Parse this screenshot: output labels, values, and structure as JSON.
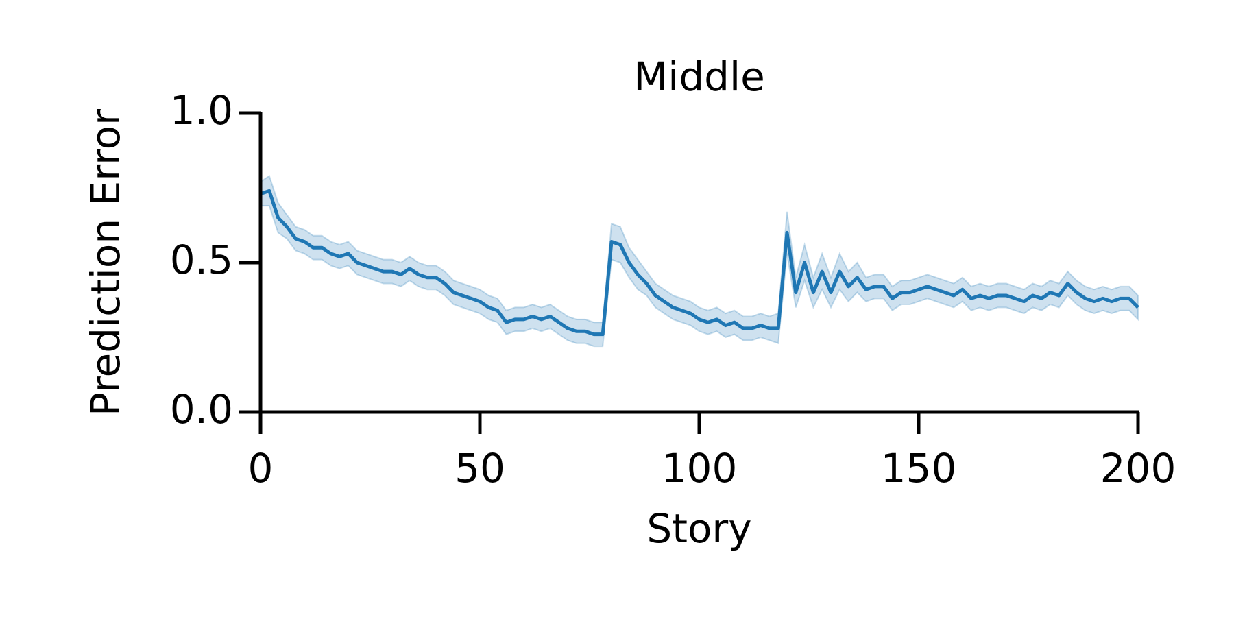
{
  "chart_data": {
    "type": "line",
    "title": "Middle",
    "x_label": "Story",
    "y_label": "Prediction Error",
    "x": [
      0,
      2,
      4,
      6,
      8,
      10,
      12,
      14,
      16,
      18,
      20,
      22,
      24,
      26,
      28,
      30,
      32,
      34,
      36,
      38,
      40,
      42,
      44,
      46,
      48,
      50,
      52,
      54,
      56,
      58,
      60,
      62,
      64,
      66,
      68,
      70,
      72,
      74,
      76,
      78,
      80,
      82,
      84,
      86,
      88,
      90,
      92,
      94,
      96,
      98,
      100,
      102,
      104,
      106,
      108,
      110,
      112,
      114,
      116,
      118,
      120,
      122,
      124,
      126,
      128,
      130,
      132,
      134,
      136,
      138,
      140,
      142,
      144,
      146,
      148,
      150,
      152,
      154,
      156,
      158,
      160,
      162,
      164,
      166,
      168,
      170,
      172,
      174,
      176,
      178,
      180,
      182,
      184,
      186,
      188,
      190,
      192,
      194,
      196,
      198,
      200
    ],
    "series": [
      {
        "color": "#1f77b4",
        "values": [
          0.73,
          0.74,
          0.65,
          0.62,
          0.58,
          0.57,
          0.55,
          0.55,
          0.53,
          0.52,
          0.53,
          0.5,
          0.49,
          0.48,
          0.47,
          0.47,
          0.46,
          0.48,
          0.46,
          0.45,
          0.45,
          0.43,
          0.4,
          0.39,
          0.38,
          0.37,
          0.35,
          0.34,
          0.3,
          0.31,
          0.31,
          0.32,
          0.31,
          0.32,
          0.3,
          0.28,
          0.27,
          0.27,
          0.26,
          0.26,
          0.57,
          0.56,
          0.5,
          0.46,
          0.43,
          0.39,
          0.37,
          0.35,
          0.34,
          0.33,
          0.31,
          0.3,
          0.31,
          0.29,
          0.3,
          0.28,
          0.28,
          0.29,
          0.28,
          0.28,
          0.6,
          0.4,
          0.5,
          0.4,
          0.47,
          0.4,
          0.47,
          0.42,
          0.45,
          0.41,
          0.42,
          0.42,
          0.38,
          0.4,
          0.4,
          0.41,
          0.42,
          0.41,
          0.4,
          0.39,
          0.41,
          0.38,
          0.39,
          0.38,
          0.39,
          0.39,
          0.38,
          0.37,
          0.39,
          0.38,
          0.4,
          0.39,
          0.43,
          0.4,
          0.38,
          0.37,
          0.38,
          0.37,
          0.38,
          0.38,
          0.35
        ],
        "error": [
          0.04,
          0.05,
          0.05,
          0.04,
          0.04,
          0.04,
          0.04,
          0.04,
          0.04,
          0.04,
          0.04,
          0.04,
          0.04,
          0.04,
          0.04,
          0.04,
          0.04,
          0.04,
          0.04,
          0.04,
          0.04,
          0.04,
          0.04,
          0.04,
          0.04,
          0.04,
          0.04,
          0.04,
          0.04,
          0.04,
          0.04,
          0.04,
          0.04,
          0.04,
          0.04,
          0.04,
          0.04,
          0.04,
          0.04,
          0.04,
          0.06,
          0.06,
          0.05,
          0.05,
          0.04,
          0.04,
          0.04,
          0.04,
          0.04,
          0.04,
          0.04,
          0.04,
          0.04,
          0.04,
          0.04,
          0.04,
          0.04,
          0.04,
          0.04,
          0.05,
          0.07,
          0.05,
          0.06,
          0.05,
          0.06,
          0.05,
          0.06,
          0.05,
          0.05,
          0.04,
          0.04,
          0.04,
          0.04,
          0.04,
          0.04,
          0.04,
          0.04,
          0.04,
          0.04,
          0.04,
          0.04,
          0.04,
          0.04,
          0.04,
          0.04,
          0.04,
          0.04,
          0.04,
          0.04,
          0.04,
          0.04,
          0.04,
          0.04,
          0.04,
          0.04,
          0.04,
          0.04,
          0.04,
          0.04,
          0.04,
          0.04
        ]
      }
    ],
    "xlim": [
      0,
      200
    ],
    "xticks": [
      0,
      50,
      100,
      150,
      200
    ],
    "ylim": [
      0,
      1
    ],
    "yticks": [
      {
        "value": 0,
        "label": "0.0"
      },
      {
        "value": 0.5,
        "label": "0.5"
      },
      {
        "value": 1,
        "label": "1.0"
      }
    ]
  }
}
